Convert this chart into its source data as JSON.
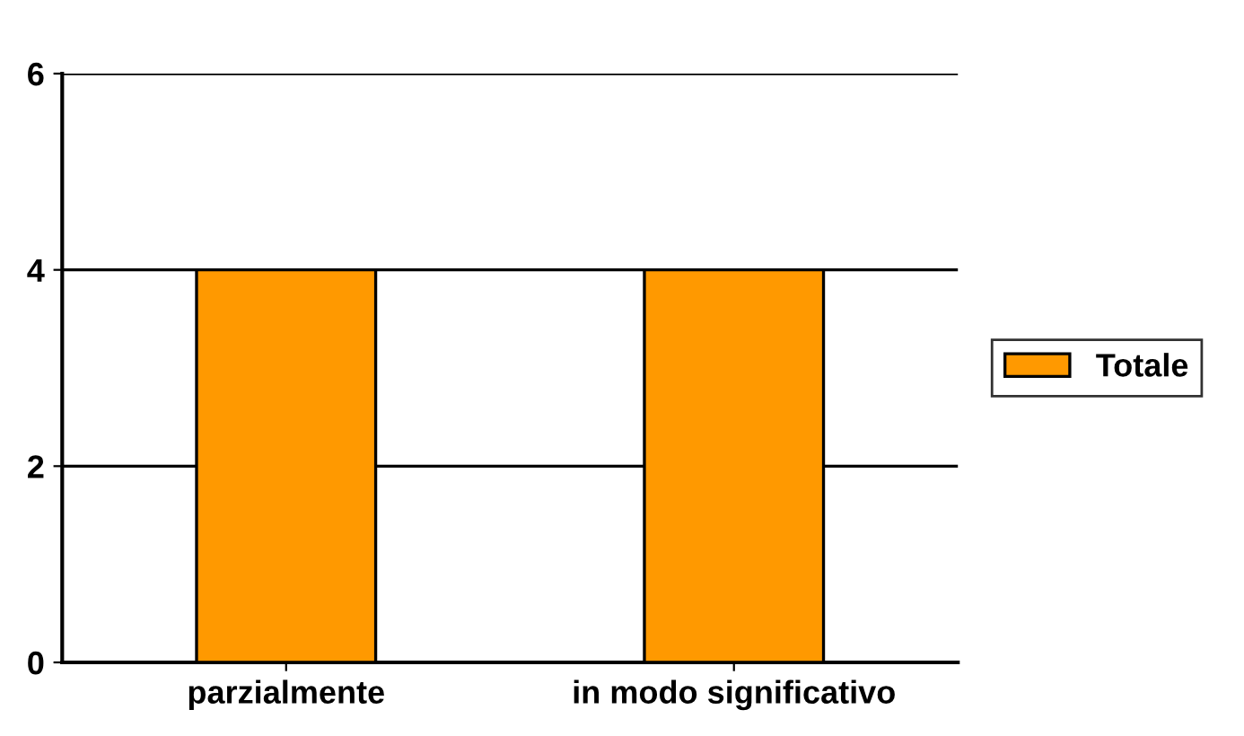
{
  "chart_data": {
    "type": "bar",
    "categories": [
      "parzialmente",
      "in modo significativo"
    ],
    "series": [
      {
        "name": "Totale",
        "color": "#ff9900",
        "values": [
          4,
          4
        ]
      }
    ],
    "ylim": [
      0,
      6
    ],
    "yticks": [
      0,
      2,
      4,
      6
    ],
    "grid": "y",
    "legend": "right"
  }
}
